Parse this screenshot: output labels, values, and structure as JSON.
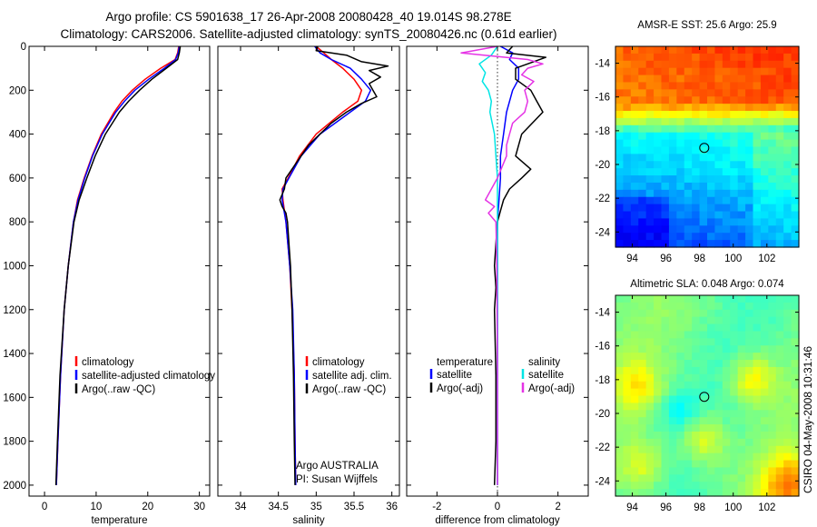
{
  "title_line1": "Argo profile: CS 5901638_17 26-Apr-2008 20080428_40 19.014S 98.278E",
  "title_line2": "Climatology: CARS2006. Satellite-adjusted climatology: synTS_20080426.nc (0.61d earlier)",
  "side_label": "CSIRO 04-May-2008 10:31:46",
  "colors": {
    "climatology": "#ff0000",
    "satellite": "#0000ff",
    "argo": "#000000",
    "salinity_satellite": "#00e5e5",
    "salinity_argo": "#e533e5",
    "zero_line": "#000000"
  },
  "chart_data": [
    {
      "type": "line",
      "id": "temperature",
      "xlabel": "temperature",
      "ylabel": "",
      "xlim": [
        -3,
        32
      ],
      "ylim": [
        2050,
        0
      ],
      "xticks": [
        0,
        10,
        20,
        30
      ],
      "yticks": [
        0,
        200,
        400,
        600,
        800,
        1000,
        1200,
        1400,
        1600,
        1800,
        2000
      ],
      "y_reversed": true,
      "legend": [
        "climatology",
        "satellite-adjusted climatology",
        "Argo(..raw -QC)"
      ],
      "series": [
        {
          "name": "climatology",
          "color_key": "climatology",
          "depth": [
            0,
            30,
            60,
            100,
            150,
            200,
            250,
            300,
            400,
            500,
            600,
            700,
            800,
            1000,
            1200,
            1500,
            1800,
            2000
          ],
          "values": [
            26,
            25.8,
            25.3,
            22.5,
            19.5,
            17,
            15,
            13.5,
            11,
            9.2,
            7.7,
            6.4,
            5.6,
            4.6,
            3.8,
            3.1,
            2.6,
            2.3
          ]
        },
        {
          "name": "satellite-adjusted climatology",
          "color_key": "satellite",
          "depth": [
            0,
            30,
            60,
            100,
            150,
            200,
            250,
            300,
            400,
            500,
            600,
            700,
            800,
            1000,
            1200,
            1500,
            1800,
            2000
          ],
          "values": [
            26.1,
            25.9,
            25.4,
            23.2,
            20.2,
            17.5,
            15.5,
            13.8,
            11.2,
            9.3,
            7.8,
            6.5,
            5.6,
            4.6,
            3.8,
            3.1,
            2.6,
            2.3
          ]
        },
        {
          "name": "Argo(..raw -QC)",
          "color_key": "argo",
          "depth": [
            0,
            30,
            60,
            100,
            150,
            200,
            250,
            300,
            400,
            500,
            600,
            700,
            800,
            1000,
            1200,
            1500,
            1800,
            2000
          ],
          "values": [
            26.3,
            26.1,
            25.8,
            23.6,
            20.8,
            18.4,
            16.3,
            14.5,
            11.8,
            9.8,
            8.2,
            6.7,
            5.7,
            4.6,
            3.8,
            3.0,
            2.5,
            2.2
          ]
        }
      ]
    },
    {
      "type": "line",
      "id": "salinity",
      "xlabel": "salinity",
      "ylabel": "",
      "xlim": [
        33.7,
        36.1
      ],
      "ylim": [
        2050,
        0
      ],
      "xticks": [
        34,
        34.5,
        35,
        35.5,
        36
      ],
      "y_reversed": true,
      "legend": [
        "climatology",
        "satellite adj. clim.",
        "Argo(..raw -QC)"
      ],
      "annotations": [
        "Argo AUSTRALIA",
        "PI: Susan Wijffels"
      ],
      "series": [
        {
          "name": "climatology",
          "color_key": "climatology",
          "depth": [
            0,
            30,
            60,
            100,
            150,
            200,
            250,
            300,
            400,
            500,
            600,
            650,
            700,
            800,
            1000,
            1200,
            1500,
            1800,
            2000
          ],
          "values": [
            35.0,
            35.1,
            35.2,
            35.35,
            35.5,
            35.6,
            35.55,
            35.35,
            35.0,
            34.78,
            34.63,
            34.55,
            34.56,
            34.6,
            34.65,
            34.68,
            34.71,
            34.72,
            34.73
          ]
        },
        {
          "name": "satellite adj. clim.",
          "color_key": "satellite",
          "depth": [
            0,
            30,
            60,
            100,
            150,
            200,
            250,
            300,
            400,
            500,
            600,
            650,
            700,
            800,
            1000,
            1200,
            1500,
            1800,
            2000
          ],
          "values": [
            34.98,
            35.05,
            35.2,
            35.45,
            35.6,
            35.72,
            35.65,
            35.45,
            35.05,
            34.8,
            34.64,
            34.56,
            34.55,
            34.6,
            34.65,
            34.69,
            34.71,
            34.72,
            34.73
          ]
        },
        {
          "name": "Argo(..raw -QC)",
          "color_key": "argo",
          "depth": [
            0,
            20,
            40,
            70,
            90,
            110,
            140,
            170,
            200,
            230,
            260,
            300,
            350,
            400,
            450,
            500,
            550,
            600,
            650,
            700,
            730,
            760,
            800,
            900,
            1000,
            1200,
            1500,
            1800,
            2000
          ],
          "values": [
            35.02,
            35.0,
            35.4,
            35.6,
            35.95,
            35.7,
            35.85,
            35.7,
            35.75,
            35.8,
            35.6,
            35.4,
            35.2,
            35.05,
            34.9,
            34.8,
            34.7,
            34.6,
            34.58,
            34.52,
            34.55,
            34.6,
            34.62,
            34.64,
            34.66,
            34.68,
            34.7,
            34.71,
            34.72
          ]
        }
      ]
    },
    {
      "type": "line",
      "id": "difference",
      "xlabel": "difference from climatology",
      "ylabel": "",
      "xlim": [
        -3,
        3
      ],
      "ylim": [
        2050,
        0
      ],
      "xticks": [
        -2,
        0,
        2
      ],
      "y_reversed": true,
      "legend_left_title": "temperature",
      "legend_right_title": "salinity",
      "legend": [
        "satellite",
        "Argo(-adj)",
        "satellite",
        "Argo(-adj)"
      ],
      "series": [
        {
          "name": "satellite",
          "group": "temperature",
          "color_key": "satellite",
          "depth": [
            0,
            30,
            60,
            100,
            150,
            200,
            300,
            400,
            500,
            600,
            700,
            800,
            1000,
            1500,
            2000
          ],
          "values": [
            0.1,
            0.5,
            0.4,
            0.7,
            0.7,
            0.5,
            0.3,
            0.2,
            0.1,
            0.1,
            0.05,
            0.0,
            0.0,
            0.0,
            0.0
          ]
        },
        {
          "name": "Argo(-adj)",
          "group": "temperature",
          "color_key": "argo",
          "depth": [
            0,
            30,
            50,
            80,
            100,
            150,
            200,
            250,
            300,
            400,
            500,
            560,
            600,
            650,
            700,
            750,
            800,
            900,
            1000,
            1100,
            1200,
            1500,
            1800,
            2000
          ],
          "values": [
            0.5,
            0.3,
            1.6,
            1.0,
            0.6,
            0.6,
            1.1,
            1.3,
            1.5,
            0.8,
            0.6,
            1.1,
            0.8,
            0.4,
            0.2,
            0.1,
            0.0,
            -0.05,
            -0.1,
            -0.05,
            -0.1,
            -0.05,
            -0.05,
            -0.1
          ]
        },
        {
          "name": "satellite",
          "group": "salinity",
          "color_key": "salinity_satellite",
          "depth": [
            0,
            40,
            80,
            120,
            160,
            200,
            250,
            300,
            400,
            500,
            600,
            700,
            800,
            1000,
            1500,
            2000
          ],
          "values": [
            0.0,
            -0.2,
            -0.6,
            -0.4,
            -0.5,
            -0.3,
            -0.2,
            -0.25,
            -0.1,
            -0.05,
            0.0,
            0.0,
            0.0,
            0.0,
            0.0,
            0.0
          ]
        },
        {
          "name": "Argo(-adj)",
          "group": "salinity",
          "color_key": "salinity_argo",
          "depth": [
            0,
            30,
            60,
            80,
            100,
            130,
            160,
            200,
            250,
            300,
            350,
            400,
            450,
            500,
            600,
            700,
            730,
            760,
            800,
            1000,
            1500,
            2000
          ],
          "values": [
            0.0,
            -1.2,
            1.0,
            1.5,
            1.0,
            0.8,
            1.2,
            0.9,
            1.0,
            0.9,
            0.5,
            0.4,
            0.3,
            0.3,
            0.0,
            -0.4,
            -0.1,
            -0.3,
            -0.05,
            -0.02,
            0.0,
            0.0
          ]
        }
      ]
    },
    {
      "type": "heatmap",
      "id": "sst_map",
      "title": "AMSR-E SST: 25.6 Argo: 25.9",
      "xlim": [
        93,
        103.9
      ],
      "ylim": [
        -24.9,
        -13
      ],
      "xticks": [
        94,
        96,
        98,
        100,
        102
      ],
      "yticks": [
        -14,
        -16,
        -18,
        -20,
        -22,
        -24
      ],
      "marker": {
        "lon": 98.278,
        "lat": -19.014
      },
      "colormap": "jet",
      "description": "warm north, cooler south-west"
    },
    {
      "type": "heatmap",
      "id": "sla_map",
      "title": "Altimetric SLA: 0.048 Argo: 0.074",
      "xlim": [
        93,
        103.9
      ],
      "ylim": [
        -24.9,
        -13
      ],
      "xticks": [
        94,
        96,
        98,
        100,
        102
      ],
      "yticks": [
        -14,
        -16,
        -18,
        -20,
        -22,
        -24
      ],
      "marker": {
        "lon": 98.278,
        "lat": -19.014
      },
      "colormap": "jet"
    }
  ]
}
